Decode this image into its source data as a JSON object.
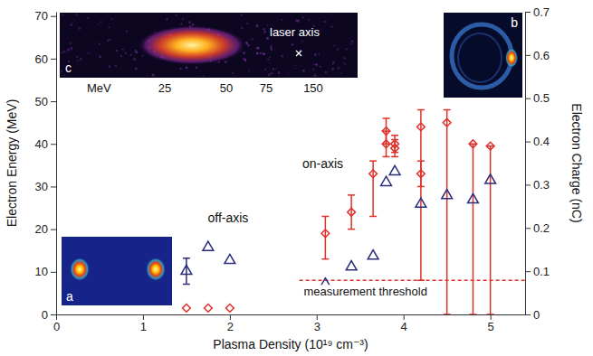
{
  "chart_data": {
    "type": "scatter",
    "x_label": "Plasma Density (10¹⁹ cm⁻³)",
    "y_label": "Electron Energy (MeV)",
    "y2_label": "Electron Charge (nC)",
    "xlim": [
      0,
      5.4
    ],
    "xticks": [
      0,
      1,
      2,
      3,
      4,
      5
    ],
    "ylim": [
      0,
      71
    ],
    "yticks": [
      0,
      10,
      20,
      30,
      40,
      50,
      60,
      70
    ],
    "y2lim": [
      0,
      0.7
    ],
    "y2ticks": [
      0,
      0.1,
      0.2,
      0.3,
      0.4,
      0.5,
      0.6,
      0.7
    ],
    "grid": false,
    "series": [
      {
        "type": "scatter",
        "color": "#e0302a",
        "marker": "diamond",
        "x": [
          1.5,
          1.75,
          2.0,
          3.1,
          3.4,
          3.65,
          3.8,
          3.8,
          3.9,
          3.9,
          4.2,
          4.2,
          4.5,
          4.8,
          5.0
        ],
        "values": [
          1.5,
          1.5,
          1.5,
          19,
          24,
          33,
          40,
          43,
          39,
          40,
          44,
          33,
          45,
          40,
          39.5
        ],
        "error_low": [
          null,
          null,
          null,
          6,
          4,
          10,
          3,
          3,
          2,
          2,
          36,
          3,
          45,
          40,
          39.5
        ],
        "error_high": [
          null,
          null,
          null,
          4,
          4,
          3,
          3,
          3,
          2,
          2,
          4,
          3,
          3,
          0,
          0
        ]
      },
      {
        "type": "scatter",
        "color": "#2b2d7c",
        "marker": "triangle",
        "axis": "y2",
        "x": [
          1.5,
          1.75,
          2.0,
          3.1,
          3.4,
          3.65,
          3.8,
          3.9,
          4.2,
          4.5,
          4.8,
          5.0
        ],
        "values": [
          0.1,
          0.155,
          0.125,
          0.07,
          0.11,
          0.135,
          0.305,
          0.33,
          0.255,
          0.275,
          0.265,
          0.31
        ],
        "error": [
          0.03,
          null,
          null,
          null,
          null,
          null,
          null,
          null,
          null,
          null,
          null,
          null
        ]
      }
    ],
    "annotations": [
      {
        "text": "off-axis"
      },
      {
        "text": "on-axis"
      }
    ],
    "threshold": {
      "label": "measurement threshold",
      "value": 8
    },
    "insets": [
      {
        "label": "a"
      },
      {
        "label": "b"
      },
      {
        "label": "c",
        "text": "laser axis",
        "scale_unit": "MeV",
        "scale_ticks": [
          25,
          50,
          75,
          150
        ]
      }
    ]
  }
}
